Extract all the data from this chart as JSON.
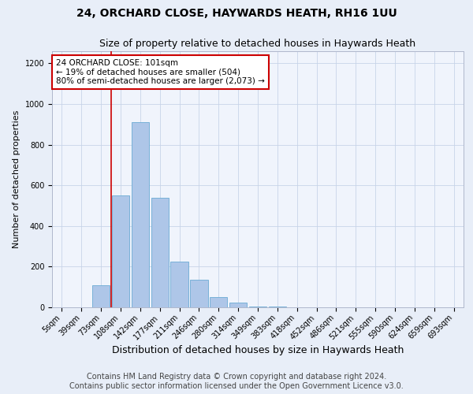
{
  "title1": "24, ORCHARD CLOSE, HAYWARDS HEATH, RH16 1UU",
  "title2": "Size of property relative to detached houses in Haywards Heath",
  "xlabel": "Distribution of detached houses by size in Haywards Heath",
  "ylabel": "Number of detached properties",
  "categories": [
    "5sqm",
    "39sqm",
    "73sqm",
    "108sqm",
    "142sqm",
    "177sqm",
    "211sqm",
    "246sqm",
    "280sqm",
    "314sqm",
    "349sqm",
    "383sqm",
    "418sqm",
    "452sqm",
    "486sqm",
    "521sqm",
    "555sqm",
    "590sqm",
    "624sqm",
    "659sqm",
    "693sqm"
  ],
  "values": [
    0,
    0,
    110,
    550,
    910,
    540,
    225,
    135,
    50,
    25,
    5,
    2,
    0,
    0,
    0,
    0,
    0,
    0,
    0,
    0,
    0
  ],
  "bar_color": "#aec6e8",
  "bar_edgecolor": "#6aaad4",
  "vline_x_index": 3,
  "vline_color": "#cc0000",
  "ylim": [
    0,
    1260
  ],
  "yticks": [
    0,
    200,
    400,
    600,
    800,
    1000,
    1200
  ],
  "annotation_text": "24 ORCHARD CLOSE: 101sqm\n← 19% of detached houses are smaller (504)\n80% of semi-detached houses are larger (2,073) →",
  "annotation_box_facecolor": "#ffffff",
  "annotation_box_edgecolor": "#cc0000",
  "footer1": "Contains HM Land Registry data © Crown copyright and database right 2024.",
  "footer2": "Contains public sector information licensed under the Open Government Licence v3.0.",
  "bg_color": "#e8eef8",
  "plot_bg_color": "#f0f4fc",
  "grid_color": "#c8d4e8",
  "title1_fontsize": 10,
  "title2_fontsize": 9,
  "xlabel_fontsize": 9,
  "ylabel_fontsize": 8,
  "tick_fontsize": 7,
  "footer_fontsize": 7,
  "annot_fontsize": 7.5
}
